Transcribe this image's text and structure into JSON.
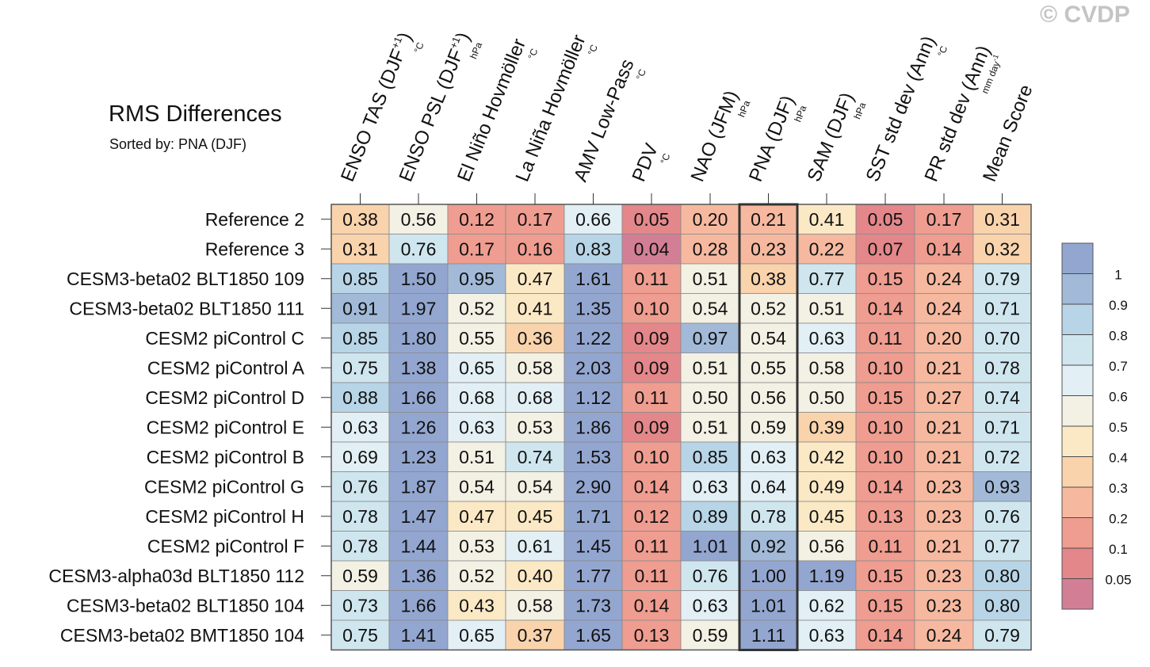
{
  "watermark": "© CVDP",
  "chart_data": {
    "type": "heatmap",
    "title": "RMS Differences",
    "subtitle": "Sorted by: PNA (DJF)",
    "columns": [
      {
        "name": "ENSO TAS (DJF",
        "sup": "+1",
        "close": ")",
        "unit": "°C"
      },
      {
        "name": "ENSO PSL (DJF",
        "sup": "+1",
        "close": ")",
        "unit": "hPa"
      },
      {
        "name": "El Niño Hovmöller",
        "unit": "°C"
      },
      {
        "name": "La Niña Hovmöller",
        "unit": "°C"
      },
      {
        "name": "AMV Low-Pass",
        "unit": "°C"
      },
      {
        "name": "PDV",
        "unit": "°C"
      },
      {
        "name": "NAO (JFM)",
        "unit": "hPa"
      },
      {
        "name": "PNA (DJF)",
        "unit": "hPa"
      },
      {
        "name": "SAM (DJF)",
        "unit": "hPa"
      },
      {
        "name": "SST std dev (Ann)",
        "unit": "°C"
      },
      {
        "name": "PR std dev (Ann)",
        "unit": "mm day",
        "unit_sup": "-1"
      },
      {
        "name": "Mean Score",
        "unit": ""
      }
    ],
    "rows": [
      "Reference 2",
      "Reference 3",
      "CESM3-beta02 BLT1850 109",
      "CESM3-beta02 BLT1850 111",
      "CESM2 piControl C",
      "CESM2 piControl A",
      "CESM2 piControl D",
      "CESM2 piControl E",
      "CESM2 piControl B",
      "CESM2 piControl G",
      "CESM2 piControl H",
      "CESM2 piControl F",
      "CESM3-alpha03d BLT1850 112",
      "CESM3-beta02 BLT1850 104",
      "CESM3-beta02 BMT1850 104"
    ],
    "values": [
      [
        "0.38",
        "0.56",
        "0.12",
        "0.17",
        "0.66",
        "0.05",
        "0.20",
        "0.21",
        "0.41",
        "0.05",
        "0.17",
        "0.31"
      ],
      [
        "0.31",
        "0.76",
        "0.17",
        "0.16",
        "0.83",
        "0.04",
        "0.28",
        "0.23",
        "0.22",
        "0.07",
        "0.14",
        "0.32"
      ],
      [
        "0.85",
        "1.50",
        "0.95",
        "0.47",
        "1.61",
        "0.11",
        "0.51",
        "0.38",
        "0.77",
        "0.15",
        "0.24",
        "0.79"
      ],
      [
        "0.91",
        "1.97",
        "0.52",
        "0.41",
        "1.35",
        "0.10",
        "0.54",
        "0.52",
        "0.51",
        "0.14",
        "0.24",
        "0.71"
      ],
      [
        "0.85",
        "1.80",
        "0.55",
        "0.36",
        "1.22",
        "0.09",
        "0.97",
        "0.54",
        "0.63",
        "0.11",
        "0.20",
        "0.70"
      ],
      [
        "0.75",
        "1.38",
        "0.65",
        "0.58",
        "2.03",
        "0.09",
        "0.51",
        "0.55",
        "0.58",
        "0.10",
        "0.21",
        "0.78"
      ],
      [
        "0.88",
        "1.66",
        "0.68",
        "0.68",
        "1.12",
        "0.11",
        "0.50",
        "0.56",
        "0.50",
        "0.15",
        "0.27",
        "0.74"
      ],
      [
        "0.63",
        "1.26",
        "0.63",
        "0.53",
        "1.86",
        "0.09",
        "0.51",
        "0.59",
        "0.39",
        "0.10",
        "0.21",
        "0.71"
      ],
      [
        "0.69",
        "1.23",
        "0.51",
        "0.74",
        "1.53",
        "0.10",
        "0.85",
        "0.63",
        "0.42",
        "0.10",
        "0.21",
        "0.72"
      ],
      [
        "0.76",
        "1.87",
        "0.54",
        "0.54",
        "2.90",
        "0.14",
        "0.63",
        "0.64",
        "0.49",
        "0.14",
        "0.23",
        "0.93"
      ],
      [
        "0.78",
        "1.47",
        "0.47",
        "0.45",
        "1.71",
        "0.12",
        "0.89",
        "0.78",
        "0.45",
        "0.13",
        "0.23",
        "0.76"
      ],
      [
        "0.78",
        "1.44",
        "0.53",
        "0.61",
        "1.45",
        "0.11",
        "1.01",
        "0.92",
        "0.56",
        "0.11",
        "0.21",
        "0.77"
      ],
      [
        "0.59",
        "1.36",
        "0.52",
        "0.40",
        "1.77",
        "0.11",
        "0.76",
        "1.00",
        "1.19",
        "0.15",
        "0.23",
        "0.80"
      ],
      [
        "0.73",
        "1.66",
        "0.43",
        "0.58",
        "1.73",
        "0.14",
        "0.63",
        "1.01",
        "0.62",
        "0.15",
        "0.23",
        "0.80"
      ],
      [
        "0.75",
        "1.41",
        "0.65",
        "0.37",
        "1.65",
        "0.13",
        "0.59",
        "1.11",
        "0.63",
        "0.14",
        "0.24",
        "0.79"
      ]
    ],
    "highlight_column": "PNA (DJF)",
    "colorbar": {
      "levels": [
        0.05,
        0.1,
        0.2,
        0.3,
        0.4,
        0.5,
        0.6,
        0.7,
        0.8,
        0.9,
        1
      ],
      "labels": [
        "1",
        "0.9",
        "0.8",
        "0.7",
        "0.6",
        "0.5",
        "0.4",
        "0.3",
        "0.2",
        "0.1",
        "0.05"
      ],
      "colors": [
        "#d27f96",
        "#e4878a",
        "#ef9d90",
        "#f6b99f",
        "#f9d3ac",
        "#fbe9c5",
        "#f3f0e4",
        "#e2eff4",
        "#cfe6ef",
        "#b8d4e7",
        "#a2bad8",
        "#93a6d0"
      ]
    }
  }
}
